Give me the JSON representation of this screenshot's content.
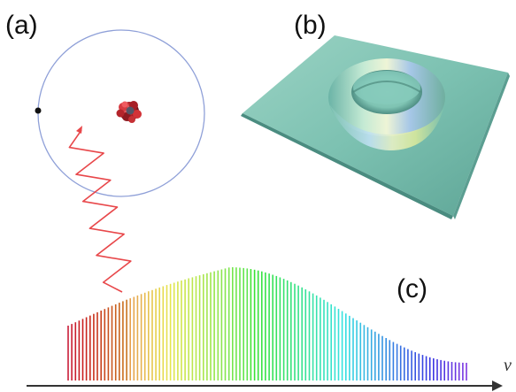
{
  "labels": {
    "a": "(a)",
    "b": "(b)",
    "c": "(c)",
    "axis": "ν"
  },
  "colors": {
    "orbit": "#8fa0d8",
    "electron": "#111111",
    "nucleus": "#c0272d",
    "photon_wave": "#e8474a",
    "surface_base": "#79c2b2",
    "axis": "#333333"
  },
  "icons": {
    "atom": "atom-diagram-icon",
    "surface": "trap-potential-surface-icon",
    "spectrum": "spectrum-comb-icon"
  }
}
